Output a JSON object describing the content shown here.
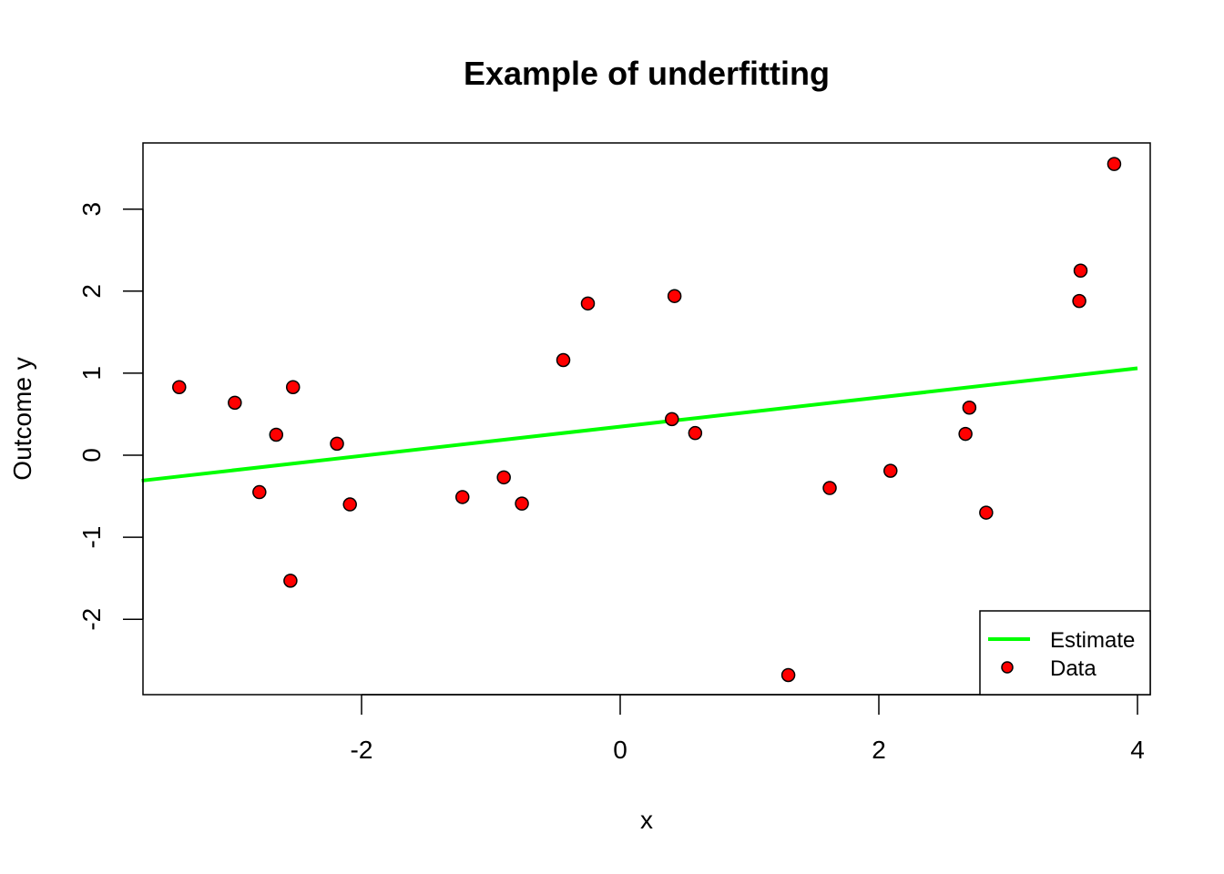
{
  "chart_data": {
    "type": "scatter",
    "title": "Example of underfitting",
    "xlabel": "x",
    "ylabel": "Outcome y",
    "xlim": [
      -3.7,
      4.1
    ],
    "ylim": [
      -2.9,
      3.8
    ],
    "x_ticks": [
      -2,
      0,
      2,
      4
    ],
    "y_ticks": [
      -2,
      -1,
      0,
      1,
      2,
      3
    ],
    "grid": false,
    "legend_position": "bottom-right",
    "colors": {
      "line": "#00ff00",
      "point_fill": "#ff0000",
      "point_stroke": "#000000"
    },
    "series": [
      {
        "name": "Estimate",
        "kind": "line",
        "x": [
          -3.7,
          4.0
        ],
        "y": [
          -0.31,
          1.06
        ]
      },
      {
        "name": "Data",
        "kind": "points",
        "points": [
          [
            -3.41,
            0.83
          ],
          [
            -2.98,
            0.64
          ],
          [
            -2.79,
            -0.45
          ],
          [
            -2.66,
            0.25
          ],
          [
            -2.55,
            -1.53
          ],
          [
            -2.53,
            0.83
          ],
          [
            -2.19,
            0.14
          ],
          [
            -2.09,
            -0.6
          ],
          [
            -1.22,
            -0.51
          ],
          [
            -0.9,
            -0.27
          ],
          [
            -0.76,
            -0.59
          ],
          [
            -0.44,
            1.16
          ],
          [
            -0.25,
            1.85
          ],
          [
            0.4,
            0.44
          ],
          [
            0.42,
            1.94
          ],
          [
            0.58,
            0.27
          ],
          [
            1.3,
            -2.68
          ],
          [
            1.62,
            -0.4
          ],
          [
            2.09,
            -0.19
          ],
          [
            2.67,
            0.26
          ],
          [
            2.7,
            0.58
          ],
          [
            2.83,
            -0.7
          ],
          [
            3.55,
            1.88
          ],
          [
            3.56,
            2.25
          ],
          [
            3.82,
            3.55
          ]
        ]
      }
    ]
  }
}
